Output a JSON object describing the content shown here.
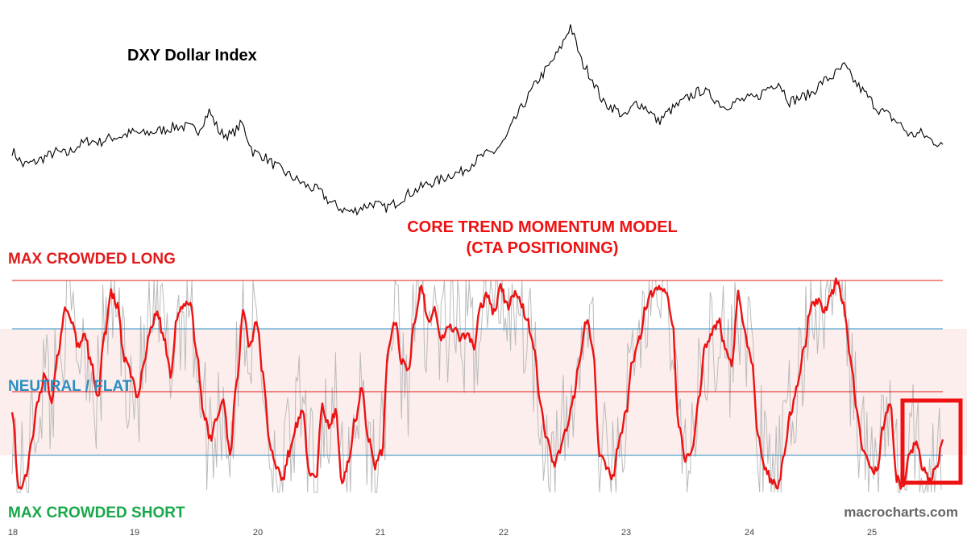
{
  "chart_data": [
    {
      "type": "line",
      "title": "DXY Dollar Index",
      "series": [
        {
          "values": [
            97.2,
            95.3,
            95.6,
            96.3,
            97.0,
            96.7,
            97.8,
            98.5,
            98.3,
            98.9,
            99.1,
            99.6,
            99.4,
            99.7,
            100.0,
            100.4,
            100.3,
            99.9,
            102.4,
            99.5,
            99.2,
            100.8,
            97.0,
            96.4,
            95.2,
            94.2,
            93.3,
            92.4,
            91.9,
            90.4,
            89.5,
            89.0,
            89.7,
            90.2,
            89.5,
            90.2,
            91.3,
            92.0,
            92.8,
            93.2,
            94.0,
            94.3,
            95.5,
            96.5,
            97.0,
            98.5,
            101.5,
            104.0,
            106.5,
            108.3,
            110.5,
            113.8,
            109.0,
            106.7,
            103.5,
            102.8,
            101.6,
            103.6,
            102.8,
            101.0,
            102.4,
            103.4,
            104.5,
            105.2,
            104.3,
            103.0,
            103.6,
            104.0,
            104.2,
            105.5,
            106.3,
            103.7,
            104.2,
            104.8,
            106.3,
            107.1,
            108.4,
            106.2,
            104.6,
            102.8,
            101.9,
            100.8,
            99.2,
            99.5,
            98.5,
            98.0
          ]
        }
      ],
      "x": {
        "start": 2018.0,
        "end": 2025.5
      }
    },
    {
      "type": "line",
      "title": "CORE TREND MOMENTUM MODEL\n(CTA POSITIONING)",
      "ylim": [
        -4,
        4
      ],
      "reference_lines": [
        {
          "label": "MAX CROWDED LONG",
          "value": 4
        },
        {
          "label": "",
          "value": 2.7
        },
        {
          "label": "NEUTRAL / FLAT",
          "value": 0
        },
        {
          "label": "",
          "value": -2.7
        },
        {
          "label": "MAX CROWDED SHORT",
          "value": -4
        }
      ],
      "x_ticks": [
        "18",
        "19",
        "20",
        "21",
        "22",
        "23",
        "24",
        "25"
      ],
      "series": [
        {
          "name": "",
          "values": [
            -0.8,
            -3.9,
            -3.5,
            -2.0,
            -0.5,
            0.5,
            -0.5,
            1.2,
            3.0,
            2.5,
            1.5,
            2.0,
            0.8,
            -0.5,
            2.0,
            3.5,
            3.0,
            1.0,
            0.5,
            -0.5,
            1.0,
            2.2,
            2.8,
            1.8,
            0.5,
            2.6,
            3.0,
            3.2,
            1.2,
            -1.0,
            -2.0,
            -1.2,
            -0.5,
            -2.5,
            0.0,
            3.0,
            1.5,
            2.5,
            0.5,
            -2.2,
            -3.0,
            -3.5,
            -2.5,
            -1.5,
            -1.0,
            -3.2,
            -3.5,
            -0.8,
            -1.5,
            -1.0,
            -3.5,
            -2.8,
            -1.2,
            0.0,
            -2.0,
            -3.0,
            -2.5,
            1.5,
            2.5,
            1.0,
            0.5,
            2.5,
            3.8,
            2.5,
            3.0,
            1.8,
            2.2,
            2.2,
            1.8,
            2.0,
            1.5,
            3.0,
            3.5,
            2.8,
            3.8,
            3.0,
            3.5,
            3.2,
            2.5,
            1.5,
            -0.5,
            -2.0,
            -3.0,
            -2.5,
            -1.5,
            -0.5,
            1.0,
            2.5,
            1.5,
            -2.5,
            -3.0,
            -3.5,
            -2.0,
            -1.0,
            1.0,
            1.8,
            3.0,
            3.5,
            3.8,
            3.5,
            2.5,
            -1.5,
            -2.8,
            -2.5,
            -0.5,
            1.5,
            2.0,
            2.5,
            1.5,
            0.8,
            3.5,
            2.0,
            1.0,
            -1.8,
            -3.0,
            -3.5,
            -3.8,
            -2.5,
            -1.0,
            0.0,
            1.5,
            3.0,
            3.2,
            2.8,
            3.5,
            4.0,
            3.0,
            1.0,
            -1.0,
            -2.5,
            -3.0,
            -3.2,
            -1.5,
            -0.5,
            -3.5,
            -3.8,
            -2.5,
            -2.0,
            -3.2,
            -3.5,
            -3.0,
            -2.0
          ]
        }
      ]
    }
  ],
  "watermark": "macrocharts.com",
  "colors": {
    "dxy_line": "#000000",
    "model_line": "#ee1111",
    "raw_signal": "#bbbbbb",
    "max_long": "#e11b1b",
    "neutral": "#2a8fc0",
    "max_short": "#19a84a",
    "band": "#fdeeee",
    "highlight_box": "#ee1111"
  }
}
